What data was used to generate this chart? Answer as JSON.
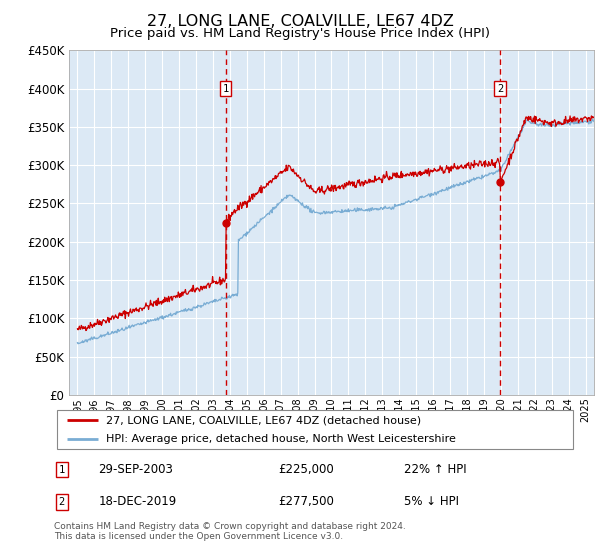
{
  "title": "27, LONG LANE, COALVILLE, LE67 4DZ",
  "subtitle": "Price paid vs. HM Land Registry's House Price Index (HPI)",
  "title_fontsize": 11.5,
  "subtitle_fontsize": 9.5,
  "ylim": [
    0,
    450000
  ],
  "yticks": [
    0,
    50000,
    100000,
    150000,
    200000,
    250000,
    300000,
    350000,
    400000,
    450000
  ],
  "ytick_labels": [
    "£0",
    "£50K",
    "£100K",
    "£150K",
    "£200K",
    "£250K",
    "£300K",
    "£350K",
    "£400K",
    "£450K"
  ],
  "xlim_start": 1994.5,
  "xlim_end": 2025.5,
  "background_color": "#dce9f5",
  "grid_color": "#ffffff",
  "line_color_red": "#cc0000",
  "line_color_blue": "#7aadd4",
  "marker1_x": 2003.75,
  "marker1_y": 225000,
  "marker1_label": "1",
  "marker1_date": "29-SEP-2003",
  "marker1_price": "£225,000",
  "marker1_hpi": "22% ↑ HPI",
  "marker2_x": 2019.96,
  "marker2_y": 277500,
  "marker2_label": "2",
  "marker2_date": "18-DEC-2019",
  "marker2_price": "£277,500",
  "marker2_hpi": "5% ↓ HPI",
  "legend_line1": "27, LONG LANE, COALVILLE, LE67 4DZ (detached house)",
  "legend_line2": "HPI: Average price, detached house, North West Leicestershire",
  "footer1": "Contains HM Land Registry data © Crown copyright and database right 2024.",
  "footer2": "This data is licensed under the Open Government Licence v3.0."
}
